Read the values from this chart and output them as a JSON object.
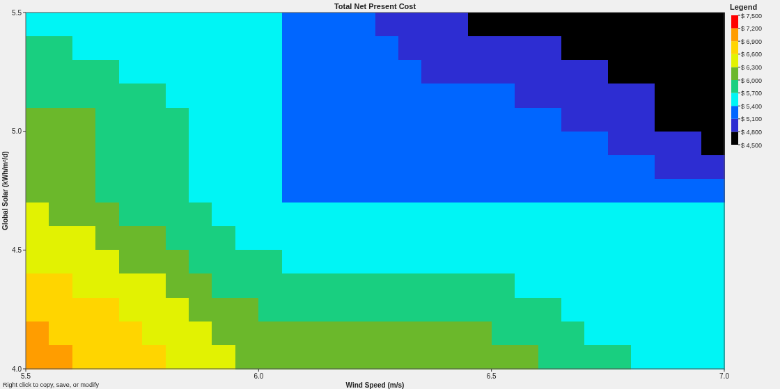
{
  "chart_data": {
    "type": "heatmap",
    "title": "Total Net Present Cost",
    "xlabel": "Wind Speed (m/s)",
    "ylabel": "Global Solar (kWh/m²/d)",
    "legend_title": "Legend",
    "annotations": [
      "Right click to copy, save, or modify"
    ],
    "xlim": [
      5.5,
      7.0
    ],
    "xticks": [
      5.5,
      {
        "value": 6,
        "label": "6.0"
      },
      6.5,
      {
        "value": 7,
        "label": "7.0"
      }
    ],
    "ylim": [
      4.0,
      5.5
    ],
    "yticks": [
      {
        "value": 4,
        "label": "4.0"
      },
      4.5,
      {
        "value": 5,
        "label": "5.0"
      },
      5.5
    ],
    "clim": [
      4500,
      7500
    ],
    "cticks": [
      {
        "value": 4500,
        "label": "$ 4,500"
      },
      {
        "value": 4800,
        "label": "$ 4,800"
      },
      {
        "value": 5100,
        "label": "$ 5,100"
      },
      {
        "value": 5400,
        "label": "$ 5,400"
      },
      {
        "value": 5700,
        "label": "$ 5,700"
      },
      {
        "value": 6000,
        "label": "$ 6,000"
      },
      {
        "value": 6300,
        "label": "$ 6,300"
      },
      {
        "value": 6600,
        "label": "$ 6,600"
      },
      {
        "value": 6900,
        "label": "$ 6,900"
      },
      {
        "value": 7200,
        "label": "$ 7,200"
      },
      {
        "value": 7500,
        "label": "$ 7,500"
      }
    ],
    "colors": [
      "#000000",
      "#2d2dd2",
      "#0066ff",
      "#00f5f5",
      "#19cf80",
      "#6bb82b",
      "#e2f202",
      "#ffd500",
      "#ff9d00",
      "#ff0000"
    ],
    "cells": [
      [
        5550,
        5550,
        5550,
        5550,
        5550,
        5550,
        5550,
        5550,
        5550,
        5550,
        5550,
        5250,
        5250,
        5250,
        5250,
        4950,
        4950,
        4950,
        4950,
        4650,
        4650,
        4650,
        4650,
        4650,
        4650,
        4650,
        4650,
        4650,
        4650,
        4650
      ],
      [
        5850,
        5850,
        5550,
        5550,
        5550,
        5550,
        5550,
        5550,
        5550,
        5550,
        5550,
        5250,
        5250,
        5250,
        5250,
        5250,
        4950,
        4950,
        4950,
        4950,
        4950,
        4950,
        4950,
        4650,
        4650,
        4650,
        4650,
        4650,
        4650,
        4650
      ],
      [
        5850,
        5850,
        5850,
        5850,
        5550,
        5550,
        5550,
        5550,
        5550,
        5550,
        5550,
        5250,
        5250,
        5250,
        5250,
        5250,
        5250,
        4950,
        4950,
        4950,
        4950,
        4950,
        4950,
        4950,
        4950,
        4650,
        4650,
        4650,
        4650,
        4650
      ],
      [
        5850,
        5850,
        5850,
        5850,
        5850,
        5850,
        5550,
        5550,
        5550,
        5550,
        5550,
        5250,
        5250,
        5250,
        5250,
        5250,
        5250,
        5250,
        5250,
        5250,
        5250,
        4950,
        4950,
        4950,
        4950,
        4950,
        4950,
        4650,
        4650,
        4650
      ],
      [
        6150,
        6150,
        6150,
        5850,
        5850,
        5850,
        5850,
        5550,
        5550,
        5550,
        5550,
        5250,
        5250,
        5250,
        5250,
        5250,
        5250,
        5250,
        5250,
        5250,
        5250,
        5250,
        5250,
        4950,
        4950,
        4950,
        4950,
        4650,
        4650,
        4650
      ],
      [
        6150,
        6150,
        6150,
        5850,
        5850,
        5850,
        5850,
        5550,
        5550,
        5550,
        5550,
        5250,
        5250,
        5250,
        5250,
        5250,
        5250,
        5250,
        5250,
        5250,
        5250,
        5250,
        5250,
        5250,
        5250,
        4950,
        4950,
        4950,
        4950,
        4650
      ],
      [
        6150,
        6150,
        6150,
        5850,
        5850,
        5850,
        5850,
        5550,
        5550,
        5550,
        5550,
        5250,
        5250,
        5250,
        5250,
        5250,
        5250,
        5250,
        5250,
        5250,
        5250,
        5250,
        5250,
        5250,
        5250,
        5250,
        5250,
        4950,
        4950,
        4950
      ],
      [
        6150,
        6150,
        6150,
        5850,
        5850,
        5850,
        5850,
        5550,
        5550,
        5550,
        5550,
        5250,
        5250,
        5250,
        5250,
        5250,
        5250,
        5250,
        5250,
        5250,
        5250,
        5250,
        5250,
        5250,
        5250,
        5250,
        5250,
        5250,
        5250,
        5250
      ],
      [
        6450,
        6150,
        6150,
        6150,
        5850,
        5850,
        5850,
        5850,
        5550,
        5550,
        5550,
        5550,
        5550,
        5550,
        5550,
        5550,
        5550,
        5550,
        5550,
        5550,
        5550,
        5550,
        5550,
        5550,
        5550,
        5550,
        5550,
        5550,
        5550,
        5550
      ],
      [
        6450,
        6450,
        6450,
        6150,
        6150,
        6150,
        5850,
        5850,
        5850,
        5550,
        5550,
        5550,
        5550,
        5550,
        5550,
        5550,
        5550,
        5550,
        5550,
        5550,
        5550,
        5550,
        5550,
        5550,
        5550,
        5550,
        5550,
        5550,
        5550,
        5550
      ],
      [
        6450,
        6450,
        6450,
        6450,
        6150,
        6150,
        6150,
        5850,
        5850,
        5850,
        5850,
        5550,
        5550,
        5550,
        5550,
        5550,
        5550,
        5550,
        5550,
        5550,
        5550,
        5550,
        5550,
        5550,
        5550,
        5550,
        5550,
        5550,
        5550,
        5550
      ],
      [
        6750,
        6750,
        6450,
        6450,
        6450,
        6450,
        6150,
        6150,
        5850,
        5850,
        5850,
        5850,
        5850,
        5850,
        5850,
        5850,
        5850,
        5850,
        5850,
        5850,
        5850,
        5550,
        5550,
        5550,
        5550,
        5550,
        5550,
        5550,
        5550,
        5550
      ],
      [
        6750,
        6750,
        6750,
        6750,
        6450,
        6450,
        6450,
        6150,
        6150,
        6150,
        5850,
        5850,
        5850,
        5850,
        5850,
        5850,
        5850,
        5850,
        5850,
        5850,
        5850,
        5850,
        5850,
        5550,
        5550,
        5550,
        5550,
        5550,
        5550,
        5550
      ],
      [
        7050,
        6750,
        6750,
        6750,
        6750,
        6450,
        6450,
        6450,
        6150,
        6150,
        6150,
        6150,
        6150,
        6150,
        6150,
        6150,
        6150,
        6150,
        6150,
        6150,
        5850,
        5850,
        5850,
        5850,
        5550,
        5550,
        5550,
        5550,
        5550,
        5550
      ],
      [
        7050,
        7050,
        6750,
        6750,
        6750,
        6750,
        6450,
        6450,
        6450,
        6150,
        6150,
        6150,
        6150,
        6150,
        6150,
        6150,
        6150,
        6150,
        6150,
        6150,
        6150,
        6150,
        5850,
        5850,
        5850,
        5850,
        5550,
        5550,
        5550,
        5550
      ]
    ]
  }
}
